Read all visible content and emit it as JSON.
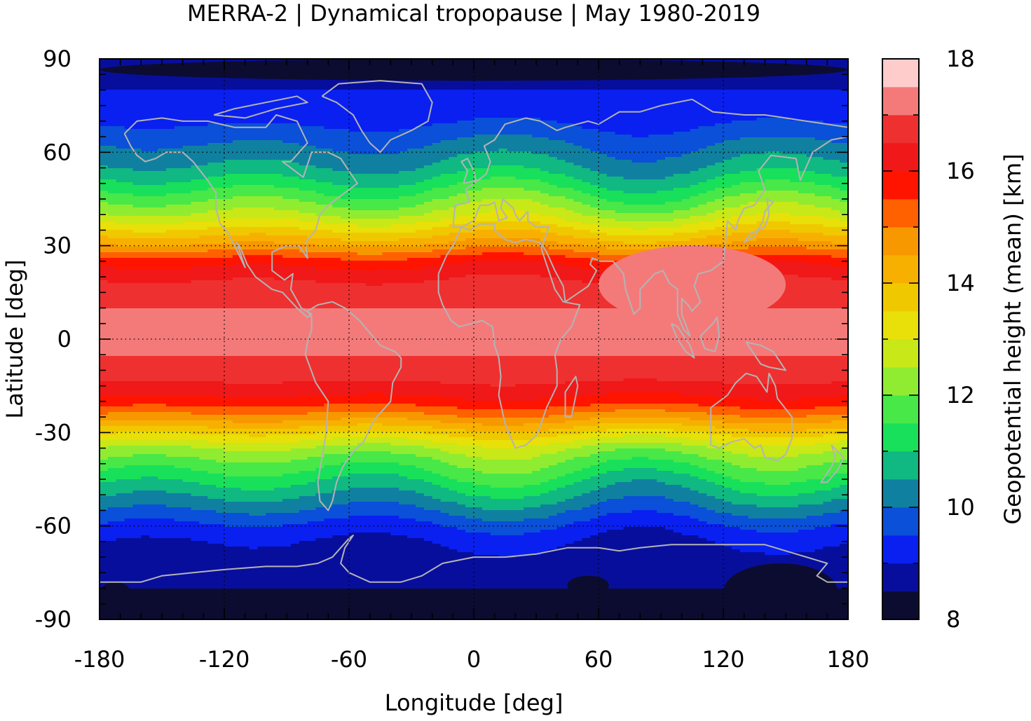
{
  "chart_data": {
    "type": "heatmap",
    "title": "MERRA-2 | Dynamical tropopause | May 1980-2019",
    "xlabel": "Longitude [deg]",
    "ylabel": "Latitude [deg]",
    "xlim": [
      -180,
      180
    ],
    "ylim": [
      -90,
      90
    ],
    "xticks": [
      -180,
      -120,
      -60,
      0,
      60,
      120,
      180
    ],
    "yticks": [
      90,
      60,
      30,
      0,
      -30,
      -60,
      -90
    ],
    "xtick_labels": [
      "-180",
      "-120",
      "-60",
      "0",
      "60",
      "120",
      "180"
    ],
    "ytick_labels": [
      "90",
      "60",
      "30",
      "0",
      "-30",
      "-60",
      "-90"
    ],
    "grid": "dotted lines at 30-degree intervals",
    "coastlines": true,
    "colorbar": {
      "label": "Geopotential height (mean) [km]",
      "range": [
        8,
        18
      ],
      "step": 0.5,
      "ticks": [
        8,
        10,
        12,
        14,
        16,
        18
      ],
      "tick_labels": [
        "8",
        "10",
        "12",
        "14",
        "16",
        "18"
      ],
      "colors": [
        "#0c0c30",
        "#080e9c",
        "#0a20f0",
        "#0a50d8",
        "#1080a0",
        "#10b882",
        "#18e05a",
        "#48e848",
        "#90ec30",
        "#c8e818",
        "#e8e008",
        "#f0c800",
        "#f8b000",
        "#f89800",
        "#ff6000",
        "#ff1400",
        "#f01818",
        "#ee3030",
        "#f47a7a",
        "#ffcccc"
      ]
    },
    "zonal_mean_profile": {
      "latitude": [
        90,
        85,
        80,
        75,
        70,
        65,
        60,
        55,
        50,
        45,
        40,
        35,
        30,
        25,
        20,
        15,
        10,
        5,
        0,
        -5,
        -10,
        -15,
        -20,
        -25,
        -30,
        -35,
        -40,
        -45,
        -50,
        -55,
        -60,
        -65,
        -70,
        -75,
        -80,
        -85,
        -90
      ],
      "height_km": [
        8.7,
        8.8,
        9.0,
        9.2,
        9.4,
        9.8,
        10.2,
        10.6,
        11.2,
        11.9,
        12.6,
        13.6,
        14.6,
        15.8,
        16.4,
        16.8,
        17.0,
        17.0,
        17.0,
        17.0,
        16.8,
        16.4,
        15.8,
        14.8,
        13.6,
        12.5,
        11.8,
        11.2,
        10.6,
        10.0,
        9.4,
        9.0,
        8.8,
        8.7,
        8.5,
        8.4,
        8.4
      ]
    },
    "features": [
      {
        "label": "Asian monsoon maximum",
        "lon_range": [
          60,
          150
        ],
        "lat_range": [
          5,
          30
        ],
        "value_km": 17.0
      },
      {
        "label": "Antarctic minimum",
        "lon_range": [
          120,
          175
        ],
        "lat_range": [
          -90,
          -72
        ],
        "value_km": 8.2
      },
      {
        "label": "Antarctic minimum",
        "lon_range": [
          -180,
          -165
        ],
        "lat_range": [
          -85,
          -78
        ],
        "value_km": 8.2
      },
      {
        "label": "Antarctic minimum",
        "lon_range": [
          45,
          65
        ],
        "lat_range": [
          -82,
          -76
        ],
        "value_km": 8.2
      },
      {
        "label": "Arctic minimum",
        "lon_range": [
          -180,
          180
        ],
        "lat_range": [
          83,
          90
        ],
        "value_km": 8.3
      }
    ]
  }
}
